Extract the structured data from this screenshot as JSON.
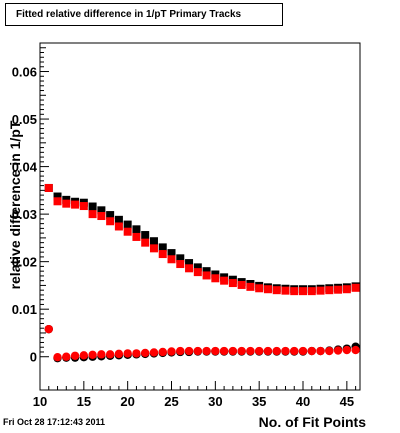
{
  "chart_data": {
    "type": "scatter",
    "title": "Fitted relative difference in 1/pT Primary Tracks",
    "xlabel": "No. of Fit Points",
    "ylabel": "relative difference in 1/pT",
    "xlim": [
      10,
      46.5
    ],
    "ylim": [
      -0.007,
      0.066
    ],
    "x_ticks": [
      10,
      15,
      20,
      25,
      30,
      35,
      40,
      45
    ],
    "y_ticks": [
      0,
      0.01,
      0.02,
      0.03,
      0.04,
      0.05,
      0.06
    ],
    "y_tick_labels": [
      "0",
      "0.01",
      "0.02",
      "0.03",
      "0.04",
      "0.05",
      "0.06"
    ],
    "grid": false,
    "legend": "none",
    "series": [
      {
        "marker": "square",
        "color": "#000000",
        "x": [
          11,
          12,
          13,
          14,
          15,
          16,
          17,
          18,
          19,
          20,
          21,
          22,
          23,
          24,
          25,
          26,
          27,
          28,
          29,
          30,
          31,
          32,
          33,
          34,
          35,
          36,
          37,
          38,
          39,
          40,
          41,
          42,
          43,
          44,
          45,
          46
        ],
        "y": [
          0.0355,
          0.0337,
          0.033,
          0.0326,
          0.0324,
          0.0316,
          0.0308,
          0.0298,
          0.0288,
          0.0278,
          0.0268,
          0.0256,
          0.0243,
          0.023,
          0.0218,
          0.0207,
          0.0197,
          0.0188,
          0.018,
          0.0173,
          0.0167,
          0.0162,
          0.0157,
          0.0153,
          0.0149,
          0.0146,
          0.0144,
          0.0143,
          0.0142,
          0.0142,
          0.0142,
          0.0143,
          0.0144,
          0.0145,
          0.0146,
          0.0148
        ]
      },
      {
        "marker": "square",
        "color": "#ff0000",
        "x": [
          11,
          12,
          13,
          14,
          15,
          16,
          17,
          18,
          19,
          20,
          21,
          22,
          23,
          24,
          25,
          26,
          27,
          28,
          29,
          30,
          31,
          32,
          33,
          34,
          35,
          36,
          37,
          38,
          39,
          40,
          41,
          42,
          43,
          44,
          45,
          46
        ],
        "y": [
          0.0355,
          0.0327,
          0.0322,
          0.032,
          0.0317,
          0.03,
          0.0296,
          0.0285,
          0.0274,
          0.0263,
          0.0252,
          0.024,
          0.0228,
          0.0216,
          0.0205,
          0.0195,
          0.0186,
          0.0178,
          0.0171,
          0.0165,
          0.016,
          0.0155,
          0.0151,
          0.0147,
          0.0144,
          0.0142,
          0.014,
          0.0139,
          0.0138,
          0.0138,
          0.0138,
          0.0139,
          0.014,
          0.0141,
          0.0142,
          0.0145
        ]
      },
      {
        "marker": "circle",
        "color": "#000000",
        "x": [
          11,
          12,
          13,
          14,
          15,
          16,
          17,
          18,
          19,
          20,
          21,
          22,
          23,
          24,
          25,
          26,
          27,
          28,
          29,
          30,
          31,
          32,
          33,
          34,
          35,
          36,
          37,
          38,
          39,
          40,
          41,
          42,
          43,
          44,
          45,
          46
        ],
        "y": [
          0.0058,
          -0.0003,
          -0.0002,
          -0.0002,
          -0.0001,
          0.0,
          0.0001,
          0.0002,
          0.0003,
          0.0004,
          0.0005,
          0.0006,
          0.0007,
          0.0008,
          0.0009,
          0.001,
          0.001,
          0.0011,
          0.0011,
          0.0011,
          0.0011,
          0.0011,
          0.0011,
          0.0011,
          0.0011,
          0.0011,
          0.0011,
          0.0011,
          0.0011,
          0.0011,
          0.0012,
          0.0012,
          0.0013,
          0.0015,
          0.0017,
          0.0021
        ]
      },
      {
        "marker": "circle",
        "color": "#ff0000",
        "x": [
          11,
          12,
          13,
          14,
          15,
          16,
          17,
          18,
          19,
          20,
          21,
          22,
          23,
          24,
          25,
          26,
          27,
          28,
          29,
          30,
          31,
          32,
          33,
          34,
          35,
          36,
          37,
          38,
          39,
          40,
          41,
          42,
          43,
          44,
          45,
          46
        ],
        "y": [
          0.0058,
          -0.0001,
          0.0,
          0.0002,
          0.0003,
          0.0004,
          0.0005,
          0.0005,
          0.0006,
          0.0007,
          0.0007,
          0.0008,
          0.0009,
          0.001,
          0.0011,
          0.0012,
          0.0012,
          0.0012,
          0.0012,
          0.0012,
          0.0012,
          0.0012,
          0.0012,
          0.0012,
          0.0012,
          0.0012,
          0.0012,
          0.0012,
          0.0012,
          0.0012,
          0.0012,
          0.0012,
          0.0012,
          0.0013,
          0.0014,
          0.0014
        ]
      }
    ]
  },
  "timestamp": "Fri Oct 28 17:12:43 2011"
}
